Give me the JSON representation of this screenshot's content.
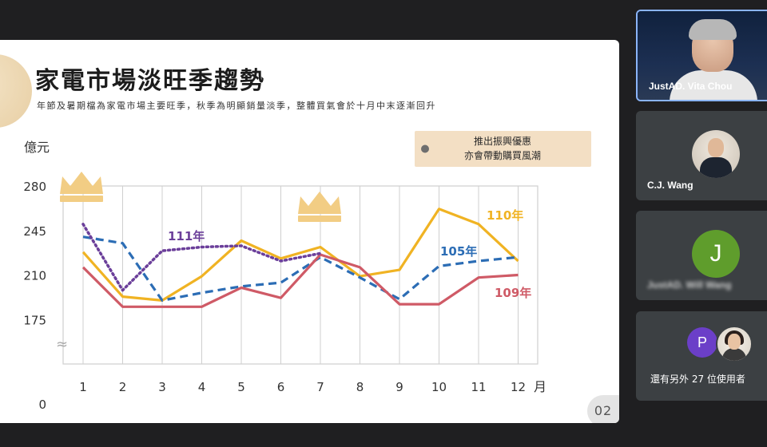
{
  "slide": {
    "title": "家電市場淡旺季趨勢",
    "subtitle": "年節及暑期檔為家電市場主要旺季，秋季為明顯銷量淡季，整體買氣會於十月中末逐漸回升",
    "y_unit": "億元",
    "x_unit": "月",
    "callout": [
      "推出振興優惠",
      "亦會帶動購買風潮"
    ],
    "page_number": "02",
    "break_symbol": "≈"
  },
  "colors": {
    "y110": "#f0b323",
    "y105": "#2c6db5",
    "y109": "#cf5a66",
    "y111": "#6b3f9a",
    "crown": "#f2cd84",
    "callout_bg": "#f3dfc4",
    "grid": "#cfcfcf"
  },
  "chart_data": {
    "type": "line",
    "x": [
      1,
      2,
      3,
      4,
      5,
      6,
      7,
      8,
      9,
      10,
      11,
      12
    ],
    "x_tick_labels": [
      "1",
      "2",
      "3",
      "4",
      "5",
      "6",
      "7",
      "8",
      "9",
      "10",
      "11",
      "12"
    ],
    "y_tick_labels": [
      "280",
      "245",
      "210",
      "175",
      "0"
    ],
    "y_ticks": [
      280,
      245,
      210,
      175
    ],
    "ylim": [
      140,
      280
    ],
    "y_axis_break": true,
    "ylabel": "億元",
    "xlabel": "月",
    "series": [
      {
        "name": "110年",
        "style": "solid",
        "color": "#f0b323",
        "x": [
          1,
          2,
          3,
          4,
          5,
          6,
          7,
          8,
          9,
          10,
          11,
          12
        ],
        "y": [
          228,
          193,
          190,
          209,
          237,
          223,
          232,
          209,
          214,
          262,
          250,
          221
        ]
      },
      {
        "name": "105年",
        "style": "dashed",
        "color": "#2c6db5",
        "x": [
          1,
          2,
          3,
          4,
          5,
          6,
          7,
          8,
          9,
          10,
          11,
          12
        ],
        "y": [
          240,
          235,
          190,
          196,
          201,
          204,
          224,
          208,
          191,
          217,
          221,
          224
        ]
      },
      {
        "name": "109年",
        "style": "solid",
        "color": "#cf5a66",
        "x": [
          1,
          2,
          3,
          4,
          5,
          6,
          7,
          8,
          9,
          10,
          11,
          12
        ],
        "y": [
          216,
          185,
          185,
          185,
          200,
          192,
          226,
          216,
          187,
          187,
          208,
          210
        ]
      },
      {
        "name": "111年",
        "style": "dotted",
        "color": "#6b3f9a",
        "x": [
          1,
          2,
          3,
          4,
          5,
          6,
          7
        ],
        "y": [
          250,
          198,
          229,
          232,
          233,
          221,
          227
        ]
      }
    ],
    "annotations": [
      "推出振興優惠",
      "亦會帶動購買風潮"
    ],
    "grid": true,
    "legend": "inline labels"
  },
  "participants": [
    {
      "name": "JustAD. Vita Chou",
      "active": true
    },
    {
      "name": "C.J. Wang"
    },
    {
      "name": "JustAD. Will Wang",
      "initial": "J",
      "blurred": true
    },
    {
      "initial": "P",
      "others_text": "還有另外 27 位使用者"
    }
  ]
}
